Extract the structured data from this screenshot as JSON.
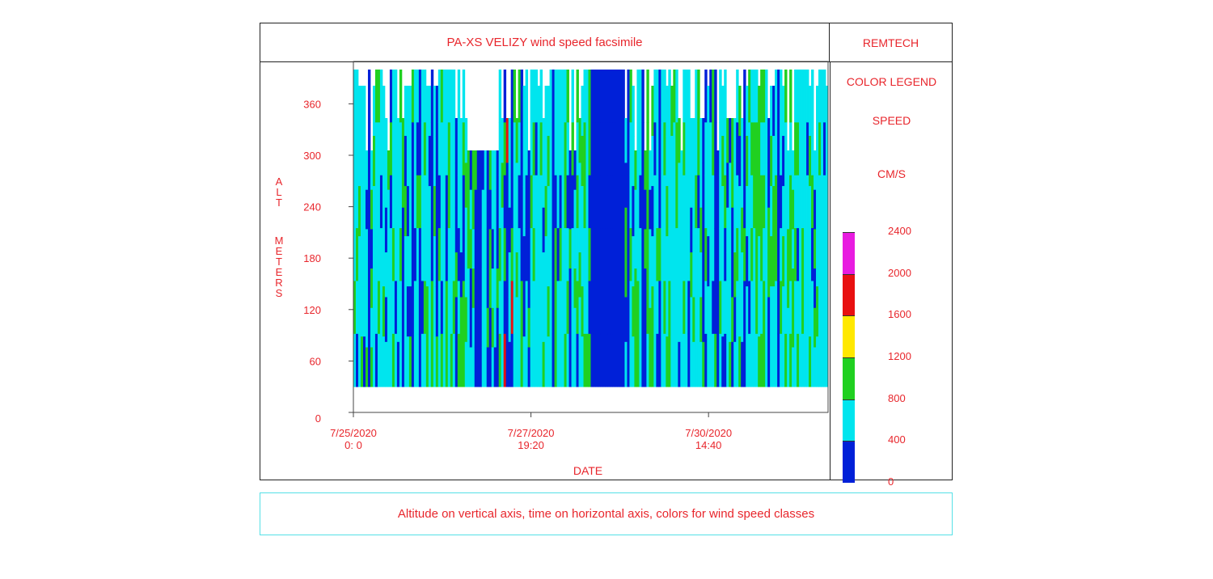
{
  "chart_data": {
    "type": "heatmap",
    "title": "PA-XS VELIZY wind speed facsimile",
    "brand": "REMTECH",
    "xlabel": "DATE",
    "ylabel": "ALT METERS",
    "yticks": [
      0,
      60,
      120,
      180,
      240,
      300,
      360
    ],
    "ylim": [
      0,
      400
    ],
    "xticks": [
      {
        "date": "7/25/2020",
        "time": "0: 0"
      },
      {
        "date": "7/27/2020",
        "time": "19:20"
      },
      {
        "date": "7/30/2020",
        "time": "14:40"
      }
    ],
    "data_start": "7/25/2020 0:00",
    "data_end": "8/1/2020 12:00",
    "legend": {
      "title": "COLOR LEGEND",
      "subtitle": "SPEED",
      "unit": "CM/S",
      "thresholds": [
        0,
        400,
        800,
        1200,
        1600,
        2000,
        2400
      ],
      "classes": [
        {
          "range": "0-400",
          "color": "#0020d8"
        },
        {
          "range": "400-800",
          "color": "#00e5ee"
        },
        {
          "range": "800-1200",
          "color": "#20d020"
        },
        {
          "range": "1200-1600",
          "color": "#ffe800"
        },
        {
          "range": "1600-2000",
          "color": "#e81010"
        },
        {
          "range": "2000-2400",
          "color": "#e81ce0"
        }
      ]
    },
    "altitude_range_m": [
      30,
      400
    ],
    "dominant_class": "400-800",
    "notable_low_speed_periods": [
      {
        "start": "7/28/2020 18:00",
        "end": "7/29/2020 06:00",
        "class": "0-400"
      }
    ]
  },
  "caption": "Altitude on vertical axis, time on horizontal axis, colors for wind speed classes"
}
